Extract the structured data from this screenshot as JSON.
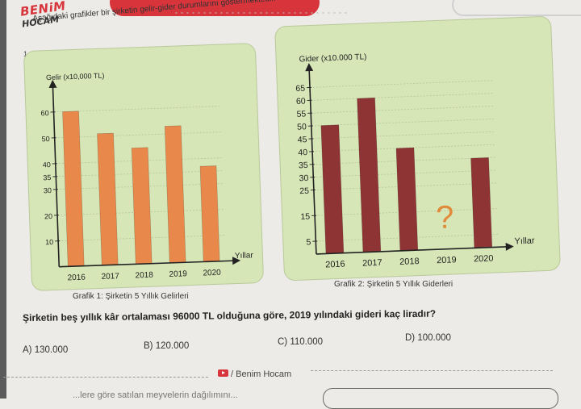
{
  "brand": {
    "logo_line1": "BENiM",
    "logo_line2": "HOCAM",
    "footer": "Benim Hocam"
  },
  "question": {
    "number": "1.",
    "intro": "Aşağıdaki grafikler bir şirketin gelir-gider durumlarını göstermektedir.",
    "text": "Şirketin beş yıllık kâr ortalaması 96000 TL olduğuna göre, 2019 yılındaki gideri kaç liradır?",
    "options": [
      {
        "label": "A)",
        "value": "130.000"
      },
      {
        "label": "B)",
        "value": "120.000"
      },
      {
        "label": "C)",
        "value": "110.000"
      },
      {
        "label": "D)",
        "value": "100.000"
      }
    ]
  },
  "bottom_text": "...lere göre satılan meyvelerin dağılımını...",
  "colors": {
    "income_bar": "#e8884a",
    "expense_bar": "#8e3434",
    "panel": "#d6e6b6",
    "brand_red": "#d8343b",
    "unknown_mark": "#e08a3a"
  },
  "chart_data": [
    {
      "type": "bar",
      "ylabel": "Gelir (x10,000 TL)",
      "xlabel": "Yıllar",
      "caption": "Grafik 1: Şirketin 5 Yıllık Gelirleri",
      "categories": [
        "2016",
        "2017",
        "2018",
        "2019",
        "2020"
      ],
      "values": [
        60,
        51,
        45,
        53,
        37
      ],
      "ylim": [
        0,
        65
      ],
      "yticks": [
        10,
        20,
        30,
        35,
        40,
        50,
        60
      ],
      "grid": true
    },
    {
      "type": "bar",
      "ylabel": "Gider (x10.000 TL)",
      "xlabel": "Yıllar",
      "caption": "Grafik 2: Şirketin 5 Yıllık Giderleri",
      "categories": [
        "2016",
        "2017",
        "2018",
        "2019",
        "2020"
      ],
      "values": [
        50,
        60,
        40,
        null,
        35
      ],
      "ylim": [
        0,
        67
      ],
      "yticks": [
        5,
        15,
        25,
        30,
        35,
        40,
        45,
        50,
        55,
        60,
        65
      ],
      "unknown_marker": "?",
      "grid": true
    }
  ]
}
